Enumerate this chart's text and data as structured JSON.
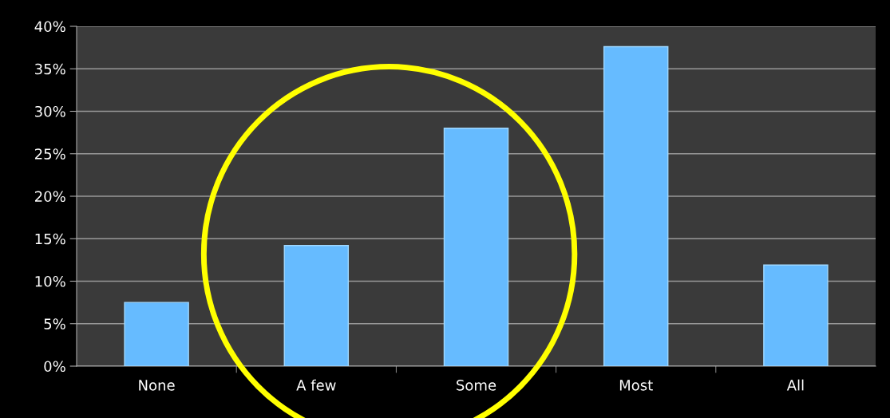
{
  "chart_data": {
    "type": "bar",
    "categories": [
      "None",
      "A few",
      "Some",
      "Most",
      "All"
    ],
    "values": [
      7.5,
      14.2,
      28.0,
      37.6,
      11.9
    ],
    "color": "#66bbff",
    "ylim": [
      0,
      40
    ],
    "yticks": [
      {
        "value": 0,
        "label": "0%"
      },
      {
        "value": 5,
        "label": "5%"
      },
      {
        "value": 10,
        "label": "10%"
      },
      {
        "value": 15,
        "label": "15%"
      },
      {
        "value": 20,
        "label": "20%"
      },
      {
        "value": 25,
        "label": "25%"
      },
      {
        "value": 30,
        "label": "30%"
      },
      {
        "value": 35,
        "label": "35%"
      },
      {
        "value": 40,
        "label": "40%"
      }
    ],
    "grid": "y",
    "legend": false
  }
}
